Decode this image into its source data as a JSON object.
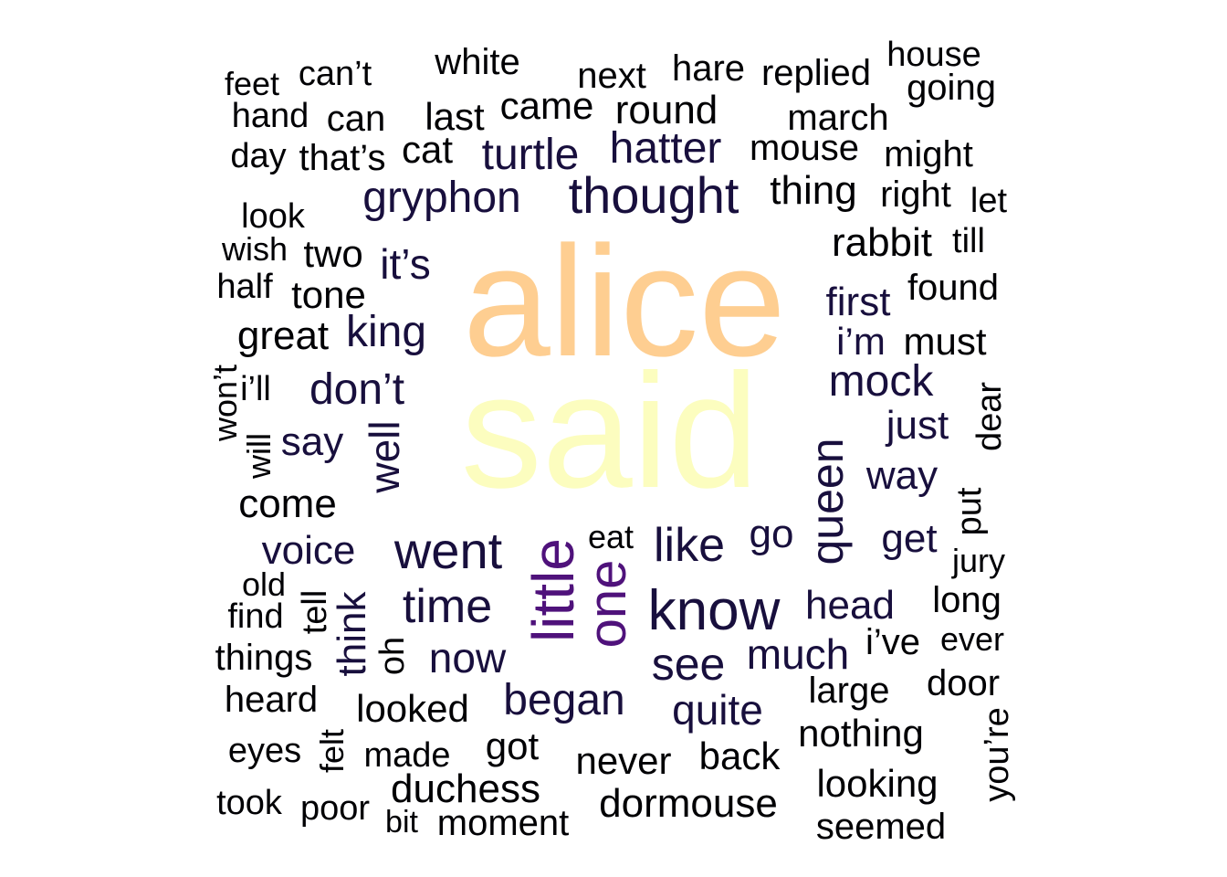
{
  "wordcloud": {
    "words": [
      {
        "text": "alice",
        "color": "#FECE91"
      },
      {
        "text": "said",
        "color": "#FCFDBF"
      },
      {
        "text": "little",
        "color": "#4F127B"
      },
      {
        "text": "one",
        "color": "#4F127B"
      },
      {
        "text": "thought",
        "color": "#180F3D"
      },
      {
        "text": "gryphon",
        "color": "#180F3D"
      },
      {
        "text": "turtle",
        "color": "#180F3D"
      },
      {
        "text": "hatter",
        "color": "#180F3D"
      },
      {
        "text": "know",
        "color": "#180F3D"
      },
      {
        "text": "went",
        "color": "#180F3D"
      },
      {
        "text": "like",
        "color": "#180F3D"
      },
      {
        "text": "queen",
        "color": "#180F3D"
      },
      {
        "text": "time",
        "color": "#180F3D"
      },
      {
        "text": "see",
        "color": "#180F3D"
      },
      {
        "text": "began",
        "color": "#180F3D"
      },
      {
        "text": "king",
        "color": "#180F3D"
      },
      {
        "text": "don’t",
        "color": "#180F3D"
      },
      {
        "text": "mock",
        "color": "#180F3D"
      },
      {
        "text": "well",
        "color": "#180F3D"
      },
      {
        "text": "it’s",
        "color": "#180F3D"
      },
      {
        "text": "now",
        "color": "#180F3D"
      },
      {
        "text": "much",
        "color": "#180F3D"
      },
      {
        "text": "quite",
        "color": "#180F3D"
      },
      {
        "text": "voice",
        "color": "#180F3D"
      },
      {
        "text": "say",
        "color": "#180F3D"
      },
      {
        "text": "think",
        "color": "#180F3D"
      },
      {
        "text": "first",
        "color": "#180F3D"
      },
      {
        "text": "i’m",
        "color": "#180F3D"
      },
      {
        "text": "just",
        "color": "#180F3D"
      },
      {
        "text": "way",
        "color": "#180F3D"
      },
      {
        "text": "get",
        "color": "#180F3D"
      },
      {
        "text": "go",
        "color": "#180F3D"
      },
      {
        "text": "head",
        "color": "#180F3D"
      },
      {
        "text": "rabbit",
        "color": "#000004"
      },
      {
        "text": "thing",
        "color": "#000004"
      },
      {
        "text": "mouse",
        "color": "#000004"
      },
      {
        "text": "round",
        "color": "#000004"
      },
      {
        "text": "came",
        "color": "#000004"
      },
      {
        "text": "white",
        "color": "#000004"
      },
      {
        "text": "next",
        "color": "#000004"
      },
      {
        "text": "hare",
        "color": "#000004"
      },
      {
        "text": "replied",
        "color": "#000004"
      },
      {
        "text": "house",
        "color": "#000004"
      },
      {
        "text": "going",
        "color": "#000004"
      },
      {
        "text": "march",
        "color": "#000004"
      },
      {
        "text": "might",
        "color": "#000004"
      },
      {
        "text": "right",
        "color": "#000004"
      },
      {
        "text": "let",
        "color": "#000004"
      },
      {
        "text": "till",
        "color": "#000004"
      },
      {
        "text": "found",
        "color": "#000004"
      },
      {
        "text": "must",
        "color": "#000004"
      },
      {
        "text": "dear",
        "color": "#000004"
      },
      {
        "text": "put",
        "color": "#000004"
      },
      {
        "text": "jury",
        "color": "#000004"
      },
      {
        "text": "long",
        "color": "#000004"
      },
      {
        "text": "ever",
        "color": "#000004"
      },
      {
        "text": "i’ve",
        "color": "#000004"
      },
      {
        "text": "door",
        "color": "#000004"
      },
      {
        "text": "large",
        "color": "#000004"
      },
      {
        "text": "you’re",
        "color": "#000004"
      },
      {
        "text": "nothing",
        "color": "#000004"
      },
      {
        "text": "looking",
        "color": "#000004"
      },
      {
        "text": "seemed",
        "color": "#000004"
      },
      {
        "text": "back",
        "color": "#000004"
      },
      {
        "text": "never",
        "color": "#000004"
      },
      {
        "text": "dormouse",
        "color": "#000004"
      },
      {
        "text": "moment",
        "color": "#000004"
      },
      {
        "text": "bit",
        "color": "#000004"
      },
      {
        "text": "duchess",
        "color": "#000004"
      },
      {
        "text": "poor",
        "color": "#000004"
      },
      {
        "text": "took",
        "color": "#000004"
      },
      {
        "text": "made",
        "color": "#000004"
      },
      {
        "text": "got",
        "color": "#000004"
      },
      {
        "text": "felt",
        "color": "#000004"
      },
      {
        "text": "eyes",
        "color": "#000004"
      },
      {
        "text": "looked",
        "color": "#000004"
      },
      {
        "text": "heard",
        "color": "#000004"
      },
      {
        "text": "things",
        "color": "#000004"
      },
      {
        "text": "find",
        "color": "#000004"
      },
      {
        "text": "old",
        "color": "#000004"
      },
      {
        "text": "tell",
        "color": "#000004"
      },
      {
        "text": "oh",
        "color": "#000004"
      },
      {
        "text": "come",
        "color": "#000004"
      },
      {
        "text": "will",
        "color": "#000004"
      },
      {
        "text": "won’t",
        "color": "#000004"
      },
      {
        "text": "i’ll",
        "color": "#000004"
      },
      {
        "text": "great",
        "color": "#000004"
      },
      {
        "text": "tone",
        "color": "#000004"
      },
      {
        "text": "half",
        "color": "#000004"
      },
      {
        "text": "two",
        "color": "#000004"
      },
      {
        "text": "wish",
        "color": "#000004"
      },
      {
        "text": "look",
        "color": "#000004"
      },
      {
        "text": "day",
        "color": "#000004"
      },
      {
        "text": "that’s",
        "color": "#000004"
      },
      {
        "text": "cat",
        "color": "#000004"
      },
      {
        "text": "hand",
        "color": "#000004"
      },
      {
        "text": "can",
        "color": "#000004"
      },
      {
        "text": "last",
        "color": "#000004"
      },
      {
        "text": "feet",
        "color": "#000004"
      },
      {
        "text": "can’t",
        "color": "#000004"
      },
      {
        "text": "eat",
        "color": "#000004"
      }
    ]
  }
}
